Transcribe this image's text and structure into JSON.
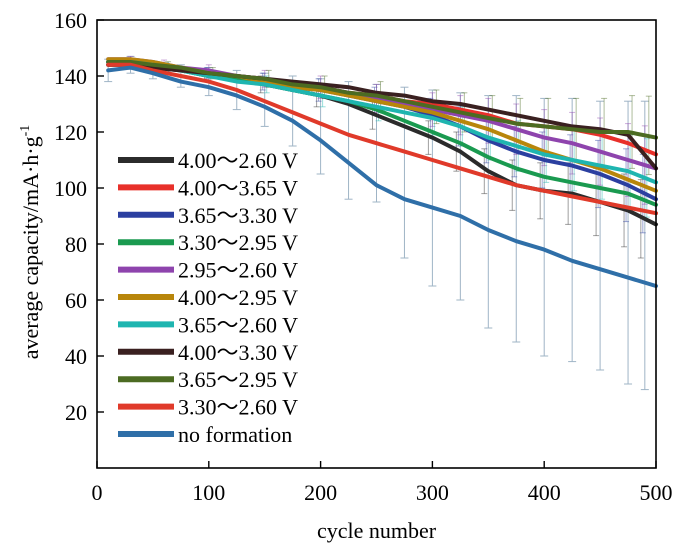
{
  "chart_data": {
    "type": "line",
    "title": "",
    "xlabel": "cycle number",
    "ylabel": "average capacity/mA·h·g",
    "ylabel_sup": "-1",
    "xlim": [
      0,
      500
    ],
    "ylim": [
      0,
      160
    ],
    "xticks": [
      0,
      100,
      200,
      300,
      400,
      500
    ],
    "yticks": [
      20,
      40,
      60,
      80,
      100,
      120,
      140,
      160
    ],
    "grid": false,
    "legend_position": "left",
    "x": [
      10,
      30,
      50,
      75,
      100,
      125,
      150,
      175,
      200,
      225,
      250,
      275,
      300,
      325,
      350,
      375,
      400,
      425,
      450,
      475,
      500
    ],
    "series": [
      {
        "name": "4.00～2.60 V",
        "color": "#2b2b2b",
        "values": [
          144,
          144,
          143,
          142,
          140,
          139,
          137,
          135,
          133,
          130,
          126,
          122,
          118,
          113,
          106,
          101,
          99,
          98,
          95,
          92,
          87
        ]
      },
      {
        "name": "4.00～3.65 V",
        "color": "#e8302a",
        "values": [
          145,
          145,
          144,
          142,
          141,
          140,
          139,
          137,
          136,
          134,
          133,
          131,
          130,
          128,
          126,
          123,
          122,
          121,
          119,
          116,
          112
        ]
      },
      {
        "name": "3.65～3.30 V",
        "color": "#2b3fa0",
        "values": [
          145,
          145,
          144,
          142,
          141,
          139,
          138,
          136,
          135,
          133,
          131,
          129,
          126,
          122,
          117,
          113,
          110,
          108,
          105,
          101,
          96
        ]
      },
      {
        "name": "3.30～2.95 V",
        "color": "#1a9a50",
        "values": [
          145,
          145,
          144,
          142,
          140,
          139,
          137,
          135,
          133,
          131,
          128,
          124,
          120,
          116,
          111,
          107,
          104,
          102,
          100,
          98,
          94
        ]
      },
      {
        "name": "2.95～2.60 V",
        "color": "#8e44ad",
        "values": [
          146,
          146,
          145,
          143,
          142,
          140,
          139,
          137,
          136,
          134,
          132,
          130,
          128,
          126,
          124,
          121,
          118,
          116,
          113,
          110,
          107
        ]
      },
      {
        "name": "4.00～2.95 V",
        "color": "#b8860b",
        "values": [
          146,
          146,
          145,
          143,
          141,
          140,
          138,
          136,
          135,
          133,
          131,
          129,
          127,
          124,
          121,
          117,
          113,
          110,
          107,
          103,
          99
        ]
      },
      {
        "name": "3.65～2.60 V",
        "color": "#1fb5b0",
        "values": [
          145,
          145,
          144,
          142,
          140,
          138,
          137,
          135,
          133,
          131,
          129,
          127,
          125,
          122,
          118,
          115,
          112,
          110,
          108,
          106,
          102
        ]
      },
      {
        "name": "4.00～3.30 V",
        "color": "#3a2020",
        "values": [
          144,
          144,
          143,
          142,
          141,
          140,
          139,
          138,
          137,
          136,
          134,
          133,
          131,
          130,
          128,
          126,
          124,
          122,
          121,
          119,
          107
        ]
      },
      {
        "name": "3.65～2.95 V",
        "color": "#4c6b22",
        "values": [
          145,
          145,
          144,
          143,
          141,
          140,
          139,
          137,
          136,
          134,
          133,
          131,
          129,
          127,
          125,
          123,
          122,
          121,
          120,
          120,
          118
        ]
      },
      {
        "name": "3.30～2.60 V",
        "color": "#e03a2a",
        "values": [
          144,
          144,
          142,
          140,
          138,
          135,
          131,
          127,
          123,
          119,
          116,
          113,
          110,
          107,
          104,
          101,
          99,
          97,
          95,
          93,
          91
        ]
      },
      {
        "name": "no formation",
        "color": "#2f6fa8",
        "values": [
          142,
          143,
          141,
          138,
          136,
          133,
          129,
          124,
          117,
          109,
          101,
          96,
          93,
          90,
          85,
          81,
          78,
          74,
          71,
          68,
          65
        ]
      }
    ],
    "error_bars": {
      "series": "no formation",
      "color": "#9fb4c6",
      "x": [
        10,
        30,
        50,
        75,
        100,
        125,
        150,
        175,
        200,
        225,
        250,
        275,
        300,
        325,
        350,
        375,
        400,
        425,
        450,
        475,
        490
      ],
      "lower": [
        138,
        141,
        139,
        136,
        133,
        128,
        122,
        115,
        105,
        96,
        95,
        75,
        65,
        60,
        50,
        45,
        40,
        38,
        35,
        30,
        28
      ],
      "upper": [
        146,
        147,
        145,
        144,
        143,
        142,
        141,
        140,
        139,
        138,
        137,
        136,
        135,
        134,
        133,
        133,
        132,
        132,
        131,
        131,
        131
      ]
    },
    "other_error_bars": {
      "color": "#b9a060",
      "x": [
        30,
        60,
        100,
        150,
        200,
        250,
        300,
        325,
        350,
        375,
        400,
        425,
        450,
        475,
        490
      ],
      "spread": [
        1,
        1.5,
        2,
        3,
        4,
        5,
        6,
        7,
        8,
        9,
        10,
        11,
        12,
        13,
        14
      ]
    }
  }
}
